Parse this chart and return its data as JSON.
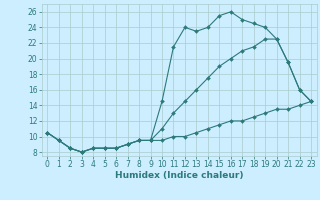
{
  "xlabel": "Humidex (Indice chaleur)",
  "x": [
    0,
    1,
    2,
    3,
    4,
    5,
    6,
    7,
    8,
    9,
    10,
    11,
    12,
    13,
    14,
    15,
    16,
    17,
    18,
    19,
    20,
    21,
    22,
    23
  ],
  "line1": [
    10.5,
    9.5,
    8.5,
    8.0,
    8.5,
    8.5,
    8.5,
    9.0,
    9.5,
    9.5,
    14.5,
    21.5,
    24.0,
    23.5,
    24.0,
    25.5,
    26.0,
    25.0,
    24.5,
    24.0,
    22.5,
    19.5,
    16.0,
    14.5
  ],
  "line2": [
    10.5,
    9.5,
    8.5,
    8.0,
    8.5,
    8.5,
    8.5,
    9.0,
    9.5,
    9.5,
    11.0,
    13.0,
    14.5,
    16.0,
    17.5,
    19.0,
    20.0,
    21.0,
    21.5,
    22.5,
    22.5,
    19.5,
    16.0,
    14.5
  ],
  "line3": [
    10.5,
    9.5,
    8.5,
    8.0,
    8.5,
    8.5,
    8.5,
    9.0,
    9.5,
    9.5,
    9.5,
    10.0,
    10.0,
    10.5,
    11.0,
    11.5,
    12.0,
    12.0,
    12.5,
    13.0,
    13.5,
    13.5,
    14.0,
    14.5
  ],
  "line_color": "#2d7a7a",
  "bg_color": "#cceeff",
  "grid_color": "#aacccc",
  "ylim": [
    7.5,
    27
  ],
  "xlim": [
    -0.5,
    23.5
  ],
  "yticks": [
    8,
    10,
    12,
    14,
    16,
    18,
    20,
    22,
    24,
    26
  ],
  "xticks": [
    0,
    1,
    2,
    3,
    4,
    5,
    6,
    7,
    8,
    9,
    10,
    11,
    12,
    13,
    14,
    15,
    16,
    17,
    18,
    19,
    20,
    21,
    22,
    23
  ],
  "markersize": 2.0,
  "linewidth": 0.8,
  "tick_fontsize": 5.5,
  "xlabel_fontsize": 6.5
}
